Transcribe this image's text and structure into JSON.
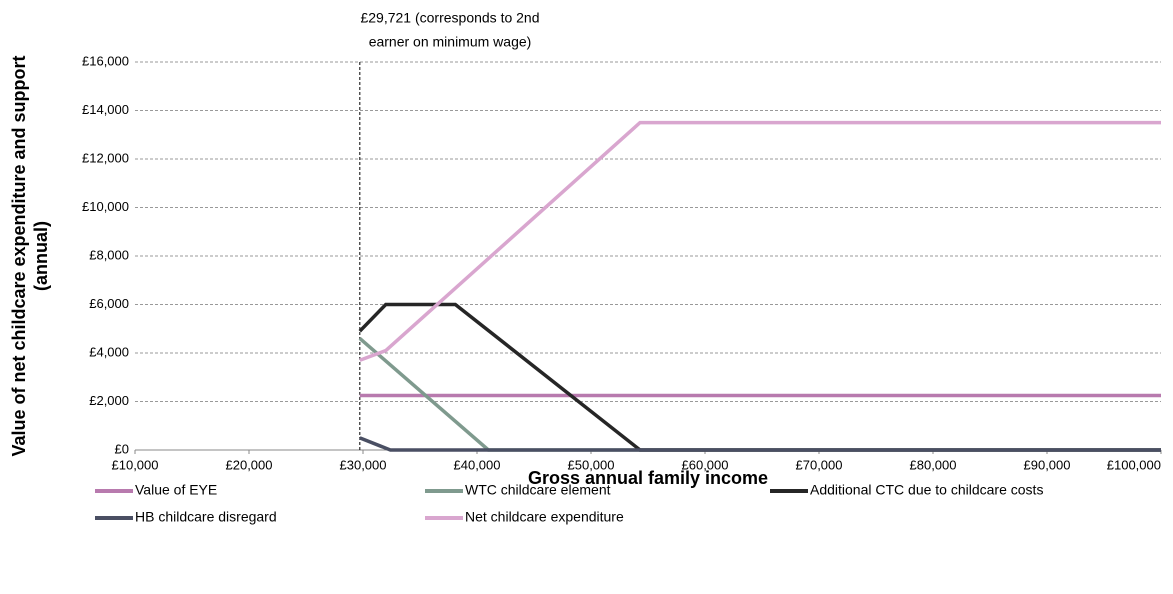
{
  "chart_data": {
    "type": "line",
    "xlabel": "Gross annual family income",
    "ylabel": [
      "Value of net childcare expenditure and support",
      "(annual)"
    ],
    "annotation": {
      "x": 29721,
      "text": [
        "£29,721 (corresponds to 2nd",
        "earner on minimum wage)"
      ]
    },
    "xlim": [
      10000,
      100000
    ],
    "ylim": [
      0,
      16000
    ],
    "xticks": [
      {
        "value": 10000,
        "label": "£10,000"
      },
      {
        "value": 20000,
        "label": "£20,000"
      },
      {
        "value": 30000,
        "label": "£30,000"
      },
      {
        "value": 40000,
        "label": "£40,000"
      },
      {
        "value": 50000,
        "label": "£50,000"
      },
      {
        "value": 60000,
        "label": "£60,000"
      },
      {
        "value": 70000,
        "label": "£70,000"
      },
      {
        "value": 80000,
        "label": "£80,000"
      },
      {
        "value": 90000,
        "label": "£90,000"
      },
      {
        "value": 100000,
        "label": "£100,000"
      }
    ],
    "yticks": [
      {
        "value": 0,
        "label": "£0"
      },
      {
        "value": 2000,
        "label": "£2,000"
      },
      {
        "value": 4000,
        "label": "£4,000"
      },
      {
        "value": 6000,
        "label": "£6,000"
      },
      {
        "value": 8000,
        "label": "£8,000"
      },
      {
        "value": 10000,
        "label": "£10,000"
      },
      {
        "value": 12000,
        "label": "£12,000"
      },
      {
        "value": 14000,
        "label": "£14,000"
      },
      {
        "value": 16000,
        "label": "£16,000"
      }
    ],
    "grid": true,
    "series": [
      {
        "name": "Value of EYE",
        "color": "#b87aae",
        "x": [
          29721,
          100000
        ],
        "values": [
          2250,
          2250
        ]
      },
      {
        "name": "WTC childcare element",
        "color": "#7f9a8e",
        "x": [
          29721,
          41000,
          100000
        ],
        "values": [
          4600,
          0,
          0
        ]
      },
      {
        "name": "Additional CTC due to childcare costs",
        "color": "#262626",
        "x": [
          29721,
          32000,
          38100,
          54300,
          100000
        ],
        "values": [
          4900,
          6000,
          6000,
          0,
          0
        ]
      },
      {
        "name": "HB childcare disregard",
        "color": "#4a4f63",
        "x": [
          29721,
          32400,
          100000
        ],
        "values": [
          500,
          0,
          0
        ]
      },
      {
        "name": "Net childcare expenditure",
        "color": "#d9a6cf",
        "x": [
          29721,
          32000,
          54300,
          100000
        ],
        "values": [
          3700,
          4100,
          13500,
          13500
        ]
      }
    ]
  }
}
